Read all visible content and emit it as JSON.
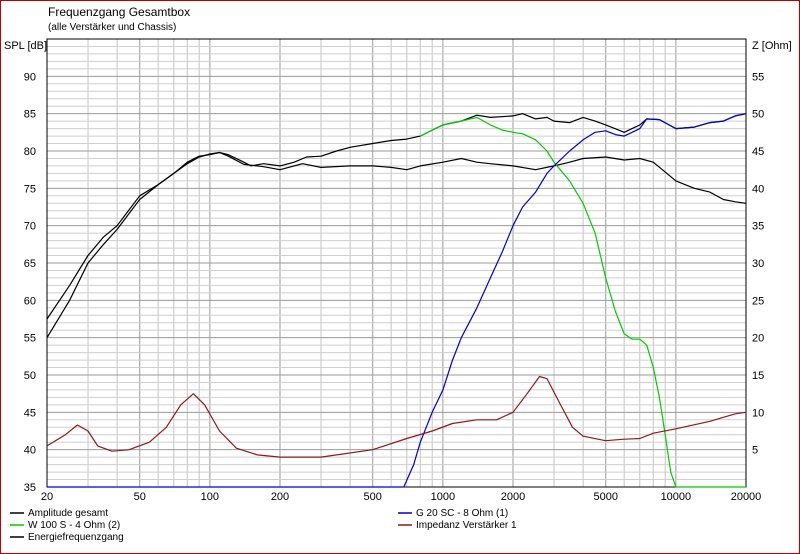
{
  "chart_data": {
    "type": "line",
    "title": "Frequenzgang Gesamtbox",
    "subtitle": "(alle Verstärker und Chassis)",
    "ylabel_left": "SPL [dB]",
    "ylabel_right": "Z [Ohm]",
    "x_scale": "log",
    "xlim": [
      20,
      20000
    ],
    "ylim_left": [
      35,
      95
    ],
    "ylim_right": [
      0,
      60
    ],
    "grid": true,
    "x_ticks": [
      "20",
      "50",
      "100",
      "200",
      "500",
      "1000",
      "2000",
      "5000",
      "10000",
      "20000"
    ],
    "y_ticks_left": [
      "35",
      "40",
      "45",
      "50",
      "55",
      "60",
      "65",
      "70",
      "75",
      "80",
      "85",
      "90"
    ],
    "y_ticks_right": [
      "5",
      "10",
      "15",
      "20",
      "25",
      "30",
      "35",
      "40",
      "45",
      "50",
      "55"
    ],
    "legend_position": "bottom",
    "series": [
      {
        "name": "Amplitude gesamt",
        "axis": "left",
        "color": "#000000",
        "points": [
          [
            20,
            57.5
          ],
          [
            25,
            62
          ],
          [
            30,
            66
          ],
          [
            35,
            68.5
          ],
          [
            40,
            70
          ],
          [
            50,
            74
          ],
          [
            60,
            75.5
          ],
          [
            70,
            77
          ],
          [
            80,
            78.5
          ],
          [
            90,
            79.3
          ],
          [
            100,
            79.5
          ],
          [
            110,
            79.8
          ],
          [
            120,
            79.5
          ],
          [
            140,
            78.5
          ],
          [
            150,
            78
          ],
          [
            170,
            78.3
          ],
          [
            200,
            78
          ],
          [
            230,
            78.5
          ],
          [
            260,
            79.2
          ],
          [
            300,
            79.3
          ],
          [
            350,
            80
          ],
          [
            400,
            80.5
          ],
          [
            500,
            81
          ],
          [
            600,
            81.4
          ],
          [
            700,
            81.6
          ],
          [
            800,
            82
          ],
          [
            900,
            82.8
          ],
          [
            1000,
            83.5
          ],
          [
            1200,
            84
          ],
          [
            1400,
            84.8
          ],
          [
            1600,
            84.5
          ],
          [
            2000,
            84.7
          ],
          [
            2200,
            85
          ],
          [
            2500,
            84.3
          ],
          [
            2800,
            84.5
          ],
          [
            3000,
            84
          ],
          [
            3500,
            83.8
          ],
          [
            4000,
            84.5
          ],
          [
            4500,
            84
          ],
          [
            5000,
            83.5
          ],
          [
            6000,
            82.5
          ],
          [
            7000,
            83.5
          ],
          [
            7500,
            84.3
          ],
          [
            8500,
            84.2
          ],
          [
            10000,
            83
          ],
          [
            12000,
            83.2
          ],
          [
            14000,
            83.8
          ],
          [
            16000,
            84
          ],
          [
            18000,
            84.7
          ],
          [
            20000,
            85
          ]
        ]
      },
      {
        "name": "Energiefrequenzgang",
        "axis": "left",
        "color": "#000000",
        "points": [
          [
            20,
            55
          ],
          [
            25,
            60
          ],
          [
            30,
            65
          ],
          [
            35,
            67.5
          ],
          [
            40,
            69.5
          ],
          [
            50,
            73.5
          ],
          [
            60,
            75.5
          ],
          [
            70,
            77
          ],
          [
            80,
            78.3
          ],
          [
            90,
            79.2
          ],
          [
            100,
            79.6
          ],
          [
            110,
            79.8
          ],
          [
            120,
            79.3
          ],
          [
            140,
            78.2
          ],
          [
            170,
            77.9
          ],
          [
            200,
            77.5
          ],
          [
            250,
            78.3
          ],
          [
            300,
            77.8
          ],
          [
            400,
            78
          ],
          [
            500,
            78
          ],
          [
            600,
            77.8
          ],
          [
            700,
            77.5
          ],
          [
            800,
            78
          ],
          [
            1000,
            78.5
          ],
          [
            1200,
            79
          ],
          [
            1400,
            78.5
          ],
          [
            1600,
            78.3
          ],
          [
            2000,
            78
          ],
          [
            2500,
            77.5
          ],
          [
            3000,
            78
          ],
          [
            3500,
            78.5
          ],
          [
            4000,
            79
          ],
          [
            5000,
            79.2
          ],
          [
            6000,
            78.8
          ],
          [
            7000,
            79
          ],
          [
            8000,
            78.5
          ],
          [
            10000,
            76
          ],
          [
            12000,
            75
          ],
          [
            14000,
            74.5
          ],
          [
            16000,
            73.5
          ],
          [
            18000,
            73.2
          ],
          [
            20000,
            73
          ]
        ]
      },
      {
        "name": "W 100 S - 4 Ohm (2)",
        "axis": "left",
        "color": "#00cc00",
        "points": [
          [
            800,
            82
          ],
          [
            900,
            82.8
          ],
          [
            1000,
            83.5
          ],
          [
            1200,
            84
          ],
          [
            1400,
            84.5
          ],
          [
            1600,
            83.5
          ],
          [
            1800,
            82.8
          ],
          [
            2000,
            82.5
          ],
          [
            2200,
            82.3
          ],
          [
            2500,
            81.5
          ],
          [
            2800,
            80
          ],
          [
            3000,
            78.5
          ],
          [
            3500,
            76
          ],
          [
            4000,
            73
          ],
          [
            4500,
            69
          ],
          [
            5000,
            63
          ],
          [
            5500,
            58.5
          ],
          [
            6000,
            55.5
          ],
          [
            6500,
            54.8
          ],
          [
            7000,
            54.8
          ],
          [
            7500,
            54
          ],
          [
            8000,
            51
          ],
          [
            8500,
            47
          ],
          [
            9000,
            42
          ],
          [
            9500,
            37
          ],
          [
            10000,
            35
          ],
          [
            20000,
            35
          ]
        ]
      },
      {
        "name": "G 20 SC - 8 Ohm (1)",
        "axis": "left",
        "color": "#0000cc",
        "points": [
          [
            20,
            35
          ],
          [
            680,
            35
          ],
          [
            750,
            38
          ],
          [
            800,
            41
          ],
          [
            900,
            45
          ],
          [
            1000,
            48
          ],
          [
            1100,
            52
          ],
          [
            1200,
            55
          ],
          [
            1400,
            59
          ],
          [
            1600,
            63
          ],
          [
            1800,
            66.5
          ],
          [
            2000,
            70
          ],
          [
            2200,
            72.5
          ],
          [
            2500,
            74.5
          ],
          [
            2800,
            77
          ],
          [
            3000,
            78
          ],
          [
            3500,
            80
          ],
          [
            4000,
            81.5
          ],
          [
            4500,
            82.5
          ],
          [
            5000,
            82.7
          ],
          [
            5500,
            82.2
          ],
          [
            6000,
            82
          ],
          [
            7000,
            83
          ],
          [
            7500,
            84.3
          ],
          [
            8500,
            84.2
          ],
          [
            10000,
            83
          ],
          [
            12000,
            83.2
          ],
          [
            14000,
            83.8
          ],
          [
            16000,
            84
          ],
          [
            18000,
            84.7
          ],
          [
            20000,
            85
          ]
        ]
      },
      {
        "name": "Impedanz Verstärker 1",
        "axis": "right",
        "color": "#8b1a1a",
        "points": [
          [
            20,
            5.5
          ],
          [
            24,
            7
          ],
          [
            27,
            8.3
          ],
          [
            30,
            7.5
          ],
          [
            33,
            5.5
          ],
          [
            38,
            4.8
          ],
          [
            45,
            5
          ],
          [
            55,
            6
          ],
          [
            65,
            8
          ],
          [
            75,
            11
          ],
          [
            85,
            12.5
          ],
          [
            95,
            11
          ],
          [
            110,
            7.5
          ],
          [
            130,
            5.2
          ],
          [
            160,
            4.3
          ],
          [
            200,
            4
          ],
          [
            300,
            4
          ],
          [
            500,
            5
          ],
          [
            700,
            6.5
          ],
          [
            900,
            7.5
          ],
          [
            1100,
            8.5
          ],
          [
            1400,
            9
          ],
          [
            1700,
            9
          ],
          [
            2000,
            10
          ],
          [
            2300,
            12.5
          ],
          [
            2600,
            14.8
          ],
          [
            2800,
            14.5
          ],
          [
            3200,
            11
          ],
          [
            3600,
            8
          ],
          [
            4000,
            6.8
          ],
          [
            5000,
            6.2
          ],
          [
            6000,
            6.4
          ],
          [
            7000,
            6.5
          ],
          [
            8000,
            7.2
          ],
          [
            10000,
            7.8
          ],
          [
            14000,
            8.8
          ],
          [
            18000,
            9.8
          ],
          [
            20000,
            10
          ]
        ]
      }
    ]
  }
}
